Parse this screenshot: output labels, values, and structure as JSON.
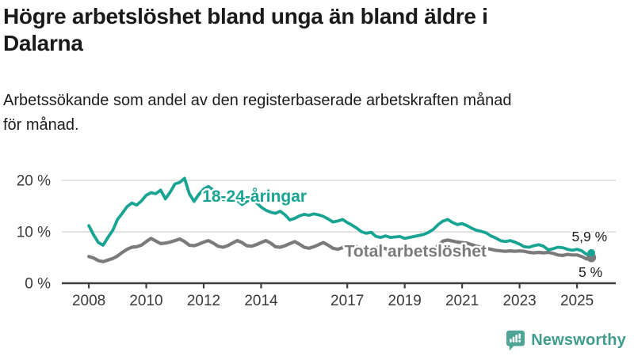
{
  "header": {
    "title": "Högre arbetslöshet bland unga än bland äldre i Dalarna",
    "title_lines": [
      "Högre arbetslöshet bland unga än bland äldre i",
      "Dalarna"
    ],
    "subtitle": "Arbetssökande som andel av den registerbaserade arbetskraften månad för månad.",
    "subtitle_lines": [
      "Arbetssökande som andel av den registerbaserade arbetskraften månad",
      "för månad."
    ]
  },
  "chart_data": {
    "type": "line",
    "title": "",
    "xlabel": "",
    "ylabel": "",
    "xlim": [
      2007.06,
      2026.35
    ],
    "ylim": [
      0,
      20
    ],
    "grid": true,
    "x_ticks": [
      2008,
      2010,
      2012,
      2014,
      2017,
      2019,
      2021,
      2023,
      2025
    ],
    "x_tick_labels": [
      "2008",
      "2010",
      "2012",
      "2014",
      "2017",
      "2019",
      "2021",
      "2023",
      "2025"
    ],
    "y_ticks": [
      0,
      10,
      20
    ],
    "y_tick_labels": [
      "0 %",
      "10 %",
      "20 %"
    ],
    "colors": {
      "youth": "#18a392",
      "total": "#7b7b7b",
      "grid": "#d8d8d8",
      "axis": "#3f3f3f",
      "label_text": "#1a1a1a"
    },
    "series": [
      {
        "name": "Total arbetslöshet",
        "key": "total",
        "color": "#7b7b7b",
        "x_start": 2008.0,
        "x_step": 0.1666667,
        "end_label": "5 %",
        "end_value": 5.0,
        "values": [
          5.2,
          4.9,
          4.4,
          4.2,
          4.5,
          4.8,
          5.3,
          6.0,
          6.6,
          7.0,
          7.1,
          7.4,
          8.1,
          8.7,
          8.2,
          7.7,
          7.8,
          8.0,
          8.3,
          8.6,
          8.1,
          7.4,
          7.3,
          7.6,
          8.0,
          8.3,
          7.8,
          7.2,
          7.0,
          7.3,
          7.8,
          8.3,
          7.9,
          7.3,
          7.2,
          7.5,
          7.9,
          8.3,
          7.8,
          7.1,
          7.0,
          7.3,
          7.7,
          8.1,
          7.6,
          7.0,
          6.8,
          7.1,
          7.5,
          7.9,
          7.4,
          6.8,
          6.6,
          6.9,
          7.3,
          7.5,
          7.1,
          6.6,
          6.5,
          6.7,
          6.9,
          7.0,
          6.7,
          6.3,
          6.2,
          6.4,
          6.4,
          6.5,
          6.3,
          6.2,
          6.2,
          6.4,
          6.6,
          7.3,
          8.2,
          8.4,
          8.2,
          8.0,
          7.9,
          7.8,
          7.5,
          7.2,
          7.0,
          6.8,
          6.6,
          6.4,
          6.3,
          6.2,
          6.3,
          6.2,
          6.3,
          6.2,
          6.0,
          5.9,
          6.0,
          5.9,
          6.0,
          5.8,
          5.5,
          5.4,
          5.6,
          5.5,
          5.5,
          5.2,
          4.7,
          5.0
        ]
      },
      {
        "name": "18-24-åringar",
        "key": "youth",
        "color": "#18a392",
        "x_start": 2008.0,
        "x_step": 0.1666667,
        "end_label": "5,9 %",
        "end_value": 5.9,
        "values": [
          11.2,
          9.4,
          7.9,
          7.4,
          8.9,
          10.3,
          12.4,
          13.6,
          14.9,
          15.6,
          15.2,
          16.0,
          17.1,
          17.6,
          17.4,
          18.1,
          16.4,
          17.7,
          19.3,
          19.6,
          20.4,
          17.4,
          15.9,
          17.3,
          18.3,
          18.8,
          18.1,
          17.2,
          16.3,
          16.1,
          16.7,
          16.1,
          15.3,
          15.9,
          16.4,
          15.7,
          14.8,
          14.2,
          13.8,
          13.6,
          14.0,
          13.3,
          12.3,
          12.6,
          13.1,
          13.4,
          13.2,
          13.5,
          13.3,
          13.0,
          12.5,
          11.9,
          12.1,
          12.4,
          11.8,
          11.3,
          10.7,
          10.0,
          9.7,
          9.9,
          9.1,
          8.9,
          9.2,
          8.9,
          9.0,
          9.1,
          8.7,
          8.9,
          9.1,
          9.3,
          9.5,
          9.9,
          10.5,
          11.4,
          12.1,
          12.4,
          11.8,
          11.4,
          11.6,
          11.2,
          10.7,
          10.3,
          10.1,
          9.8,
          9.2,
          8.8,
          8.3,
          8.1,
          8.3,
          8.0,
          7.6,
          7.1,
          7.0,
          7.3,
          7.5,
          7.2,
          6.5,
          6.7,
          7.0,
          6.9,
          6.6,
          6.4,
          6.6,
          6.3,
          5.6,
          5.9
        ]
      }
    ],
    "annotations": [
      {
        "text": "18-24-åringar",
        "x": 2011.95,
        "y": 16.9,
        "color": "#18a392"
      },
      {
        "text": "Total arbetslöshet",
        "x": 2016.9,
        "y": 6.2,
        "color": "#7b7b7b"
      }
    ],
    "legend_position": "inline-labels"
  },
  "footer": {
    "brand": "Newsworthy"
  }
}
